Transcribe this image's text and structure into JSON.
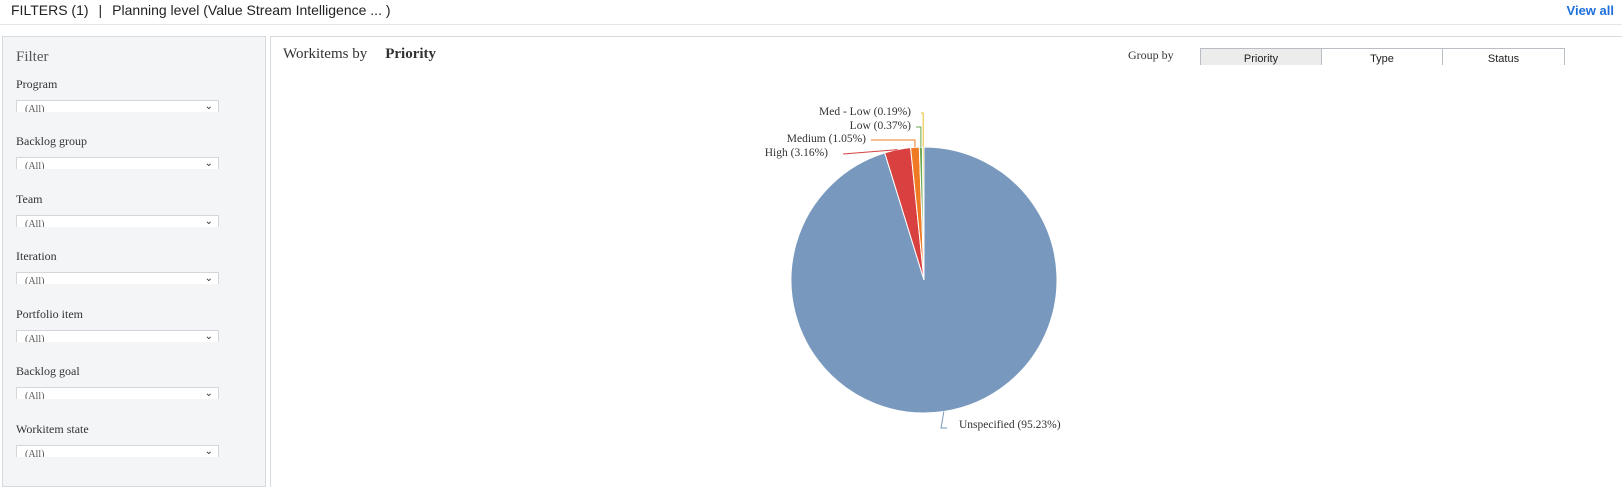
{
  "topbar": {
    "filters_label": "FILTERS (1)",
    "separator": "|",
    "planning_level": "Planning level  (Value Stream Intelligence ... )",
    "view_all": "View all"
  },
  "sidebar": {
    "title": "Filter",
    "filters": [
      {
        "label": "Program",
        "value": "(All)"
      },
      {
        "label": "Backlog group",
        "value": "(All)"
      },
      {
        "label": "Team",
        "value": "(All)"
      },
      {
        "label": "Iteration",
        "value": "(All)"
      },
      {
        "label": "Portfolio item",
        "value": "(All)"
      },
      {
        "label": "Backlog goal",
        "value": "(All)"
      },
      {
        "label": "Workitem state",
        "value": "(All)"
      }
    ]
  },
  "main": {
    "title_prefix": "Workitems by",
    "title_group": "Priority",
    "group_by_label": "Group by",
    "group_by_options": [
      "Priority",
      "Type",
      "Status"
    ],
    "group_by_selected": "Priority"
  },
  "chart_data": {
    "type": "pie",
    "slices": [
      {
        "name": "Unspecified",
        "percent": 95.23,
        "color": "#7899bd",
        "label": "Unspecified (95.23%)"
      },
      {
        "name": "High",
        "percent": 3.16,
        "color": "#d94141",
        "label": "High (3.16%)"
      },
      {
        "name": "Medium",
        "percent": 1.05,
        "color": "#f07a23",
        "label": "Medium (1.05%)"
      },
      {
        "name": "Low",
        "percent": 0.37,
        "color": "#6aa84f",
        "label": "Low (0.37%)"
      },
      {
        "name": "Med - Low",
        "percent": 0.19,
        "color": "#e8c02d",
        "label": "Med - Low (0.19%)"
      }
    ]
  }
}
